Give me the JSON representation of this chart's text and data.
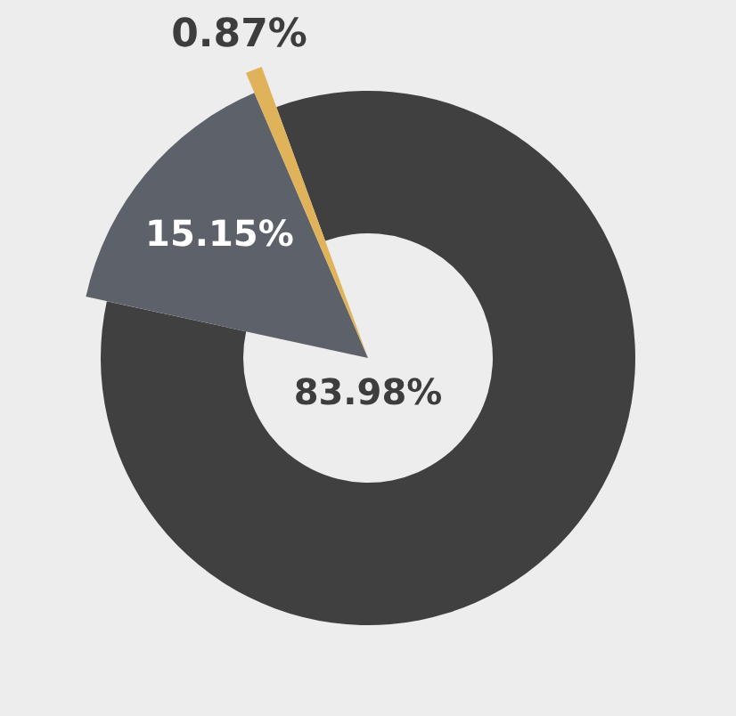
{
  "chart_data": {
    "type": "pie",
    "categories": [
      null,
      null,
      null
    ],
    "values": [
      83.98,
      15.15,
      0.87
    ],
    "colors": [
      "#404040",
      "#5d6169",
      "#e0b35a"
    ],
    "value_labels": [
      "83.98%",
      "15.15%",
      "0.87%"
    ]
  }
}
